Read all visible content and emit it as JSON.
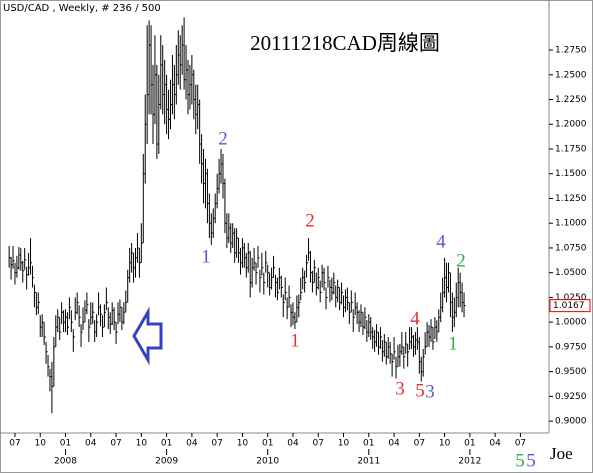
{
  "chart_data": {
    "type": "ohlc",
    "header": "USD/CAD , Weekly, # 236 / 500",
    "title": "20111218CAD周線圖",
    "author": "Joe",
    "color": "#000000",
    "xlim": [
      -4.7,
      277.7
    ],
    "ylim": [
      0.89,
      1.32
    ],
    "xticks": [
      {
        "value": 3,
        "label": "07"
      },
      {
        "value": 16,
        "label": "10"
      },
      {
        "value": 29,
        "label": "01"
      },
      {
        "value": 42,
        "label": "04"
      },
      {
        "value": 55,
        "label": "07"
      },
      {
        "value": 68,
        "label": "10"
      },
      {
        "value": 81,
        "label": "01"
      },
      {
        "value": 94,
        "label": "04"
      },
      {
        "value": 107,
        "label": "07"
      },
      {
        "value": 120,
        "label": "10"
      },
      {
        "value": 133,
        "label": "01"
      },
      {
        "value": 146,
        "label": "04"
      },
      {
        "value": 159,
        "label": "07"
      },
      {
        "value": 172,
        "label": "10"
      },
      {
        "value": 185,
        "label": "01"
      },
      {
        "value": 198,
        "label": "04"
      },
      {
        "value": 211,
        "label": "07"
      },
      {
        "value": 224,
        "label": "10"
      },
      {
        "value": 237,
        "label": "01"
      },
      {
        "value": 250,
        "label": "04"
      },
      {
        "value": 263,
        "label": "07"
      }
    ],
    "year_ticks": [
      {
        "value": 29,
        "label": "2008"
      },
      {
        "value": 81,
        "label": "2009"
      },
      {
        "value": 133,
        "label": "2010"
      },
      {
        "value": 185,
        "label": "2011"
      },
      {
        "value": 237,
        "label": "2012"
      }
    ],
    "yticks": [
      {
        "value": 0.9,
        "label": "0.9000"
      },
      {
        "value": 0.925,
        "label": "0.9250"
      },
      {
        "value": 0.95,
        "label": "0.9500"
      },
      {
        "value": 0.975,
        "label": "0.9750"
      },
      {
        "value": 1.0,
        "label": "1.0000"
      },
      {
        "value": 1.025,
        "label": "1.0250"
      },
      {
        "value": 1.05,
        "label": "1.0500"
      },
      {
        "value": 1.075,
        "label": "1.0750"
      },
      {
        "value": 1.1,
        "label": "1.1000"
      },
      {
        "value": 1.125,
        "label": "1.1250"
      },
      {
        "value": 1.15,
        "label": "1.1500"
      },
      {
        "value": 1.175,
        "label": "1.1750"
      },
      {
        "value": 1.2,
        "label": "1.2000"
      },
      {
        "value": 1.225,
        "label": "1.2250"
      },
      {
        "value": 1.25,
        "label": "1.2500"
      },
      {
        "value": 1.275,
        "label": "1.2750"
      }
    ],
    "last_price": 1.0167,
    "high": [
      1.077,
      1.066,
      1.077,
      1.06,
      1.067,
      1.076,
      1.075,
      1.062,
      1.075,
      1.056,
      1.07,
      1.085,
      1.057,
      1.038,
      1.03,
      1.03,
      1.007,
      1.008,
      1.0,
      0.98,
      0.967,
      0.953,
      0.96,
      0.985,
      1.007,
      1.013,
      1.005,
      1.02,
      1.012,
      1.013,
      1.01,
      1.025,
      1.012,
      0.993,
      1.025,
      1.03,
      1.017,
      0.998,
      1.015,
      1.022,
      1.03,
      1.003,
      1.02,
      1.02,
      1.002,
      1.008,
      1.03,
      1.018,
      1.007,
      1.018,
      1.035,
      1.015,
      1.01,
      1.02,
      1.015,
      1.0,
      1.02,
      1.023,
      1.015,
      1.02,
      1.032,
      1.053,
      1.075,
      1.08,
      1.07,
      1.075,
      1.09,
      1.075,
      1.1,
      1.17,
      1.23,
      1.3,
      1.305,
      1.3,
      1.26,
      1.29,
      1.26,
      1.25,
      1.29,
      1.28,
      1.265,
      1.25,
      1.235,
      1.245,
      1.27,
      1.26,
      1.28,
      1.295,
      1.29,
      1.3,
      1.308,
      1.28,
      1.265,
      1.26,
      1.27,
      1.255,
      1.24,
      1.24,
      1.225,
      1.19,
      1.175,
      1.165,
      1.155,
      1.13,
      1.11,
      1.115,
      1.13,
      1.15,
      1.165,
      1.175,
      1.17,
      1.145,
      1.11,
      1.11,
      1.1,
      1.1,
      1.095,
      1.095,
      1.085,
      1.075,
      1.085,
      1.08,
      1.07,
      1.08,
      1.072,
      1.065,
      1.075,
      1.06,
      1.077,
      1.053,
      1.07,
      1.05,
      1.072,
      1.058,
      1.05,
      1.055,
      1.067,
      1.048,
      1.045,
      1.055,
      1.047,
      1.028,
      1.045,
      1.025,
      1.037,
      1.018,
      1.02,
      1.01,
      1.027,
      1.028,
      1.045,
      1.055,
      1.052,
      1.068,
      1.085,
      1.072,
      1.052,
      1.063,
      1.05,
      1.055,
      1.042,
      1.058,
      1.055,
      1.035,
      1.057,
      1.043,
      1.045,
      1.05,
      1.037,
      1.043,
      1.035,
      1.04,
      1.027,
      1.033,
      1.035,
      1.02,
      1.032,
      1.013,
      1.03,
      1.02,
      1.012,
      1.018,
      1.01,
      1.015,
      1.002,
      1.008,
      1.005,
      0.995,
      0.992,
      0.998,
      0.99,
      0.995,
      0.982,
      0.988,
      0.98,
      0.985,
      0.98,
      0.968,
      0.985,
      0.965,
      0.977,
      0.978,
      0.99,
      0.975,
      0.99,
      0.978,
      0.995,
      0.995,
      0.987,
      0.99,
      0.995,
      0.985,
      0.965,
      0.973,
      0.99,
      1.0,
      0.997,
      1.003,
      0.995,
      1.005,
      1.002,
      1.013,
      1.03,
      1.045,
      1.065,
      1.06,
      1.06,
      1.05,
      1.03,
      1.025,
      1.04,
      1.055,
      1.05,
      1.04,
      1.03
    ],
    "low": [
      1.055,
      1.043,
      1.054,
      1.038,
      1.045,
      1.053,
      1.052,
      1.04,
      1.053,
      1.033,
      1.047,
      1.048,
      1.035,
      1.015,
      1.007,
      1.008,
      0.985,
      0.985,
      0.977,
      0.958,
      0.945,
      0.93,
      0.908,
      0.935,
      0.975,
      0.99,
      0.982,
      0.998,
      0.99,
      0.99,
      0.987,
      1.003,
      0.99,
      0.97,
      1.002,
      1.008,
      0.995,
      0.975,
      0.992,
      1.0,
      1.008,
      0.98,
      0.997,
      0.998,
      0.98,
      0.985,
      1.007,
      0.996,
      0.985,
      0.995,
      1.012,
      0.993,
      0.988,
      0.997,
      0.992,
      0.978,
      0.998,
      1.0,
      0.992,
      0.998,
      1.01,
      1.02,
      1.04,
      1.05,
      1.04,
      1.045,
      1.06,
      1.045,
      1.06,
      1.08,
      1.14,
      1.18,
      1.21,
      1.21,
      1.18,
      1.2,
      1.165,
      1.17,
      1.215,
      1.21,
      1.2,
      1.19,
      1.185,
      1.195,
      1.21,
      1.205,
      1.22,
      1.24,
      1.235,
      1.25,
      1.235,
      1.225,
      1.21,
      1.215,
      1.22,
      1.205,
      1.19,
      1.195,
      1.16,
      1.14,
      1.12,
      1.115,
      1.1,
      1.085,
      1.078,
      1.085,
      1.1,
      1.115,
      1.13,
      1.14,
      1.125,
      1.09,
      1.075,
      1.08,
      1.07,
      1.075,
      1.06,
      1.065,
      1.06,
      1.048,
      1.055,
      1.055,
      1.045,
      1.05,
      1.025,
      1.035,
      1.052,
      1.038,
      1.055,
      1.03,
      1.047,
      1.028,
      1.05,
      1.035,
      1.027,
      1.033,
      1.045,
      1.025,
      1.022,
      1.033,
      1.025,
      1.005,
      1.022,
      1.003,
      1.015,
      0.995,
      0.997,
      0.993,
      1.0,
      1.005,
      1.022,
      1.033,
      1.03,
      1.045,
      1.062,
      1.04,
      1.03,
      1.04,
      1.027,
      1.033,
      1.02,
      1.035,
      1.032,
      1.013,
      1.035,
      1.02,
      1.022,
      1.028,
      1.015,
      1.02,
      1.012,
      1.018,
      1.005,
      1.01,
      1.012,
      0.998,
      1.01,
      0.99,
      1.007,
      0.998,
      0.99,
      0.995,
      0.987,
      0.993,
      0.98,
      0.985,
      0.982,
      0.973,
      0.97,
      0.975,
      0.967,
      0.973,
      0.96,
      0.965,
      0.957,
      0.963,
      0.958,
      0.945,
      0.962,
      0.943,
      0.955,
      0.955,
      0.967,
      0.953,
      0.968,
      0.955,
      0.972,
      0.973,
      0.965,
      0.967,
      0.972,
      0.948,
      0.94,
      0.945,
      0.967,
      0.975,
      0.975,
      0.98,
      0.972,
      0.983,
      0.98,
      0.99,
      1.0,
      1.01,
      1.025,
      1.02,
      1.03,
      1.005,
      0.99,
      0.995,
      1.005,
      1.015,
      1.015,
      1.01,
      1.005
    ],
    "close": [
      1.065,
      1.058,
      1.062,
      1.05,
      1.055,
      1.068,
      1.06,
      1.052,
      1.063,
      1.048,
      1.055,
      1.06,
      1.045,
      1.03,
      1.015,
      1.02,
      0.995,
      1.0,
      0.985,
      0.97,
      0.955,
      0.945,
      0.935,
      0.975,
      0.995,
      1.005,
      0.99,
      1.01,
      1.0,
      1.005,
      0.995,
      1.015,
      1.0,
      0.985,
      1.01,
      1.02,
      1.005,
      0.99,
      1.0,
      1.012,
      1.018,
      0.995,
      1.005,
      1.01,
      0.99,
      1.0,
      1.015,
      1.008,
      0.995,
      1.01,
      1.02,
      1.005,
      0.998,
      1.012,
      1.0,
      0.99,
      1.008,
      1.015,
      1.0,
      1.01,
      1.02,
      1.045,
      1.06,
      1.07,
      1.055,
      1.065,
      1.075,
      1.06,
      1.08,
      1.15,
      1.2,
      1.23,
      1.28,
      1.24,
      1.21,
      1.25,
      1.18,
      1.22,
      1.26,
      1.23,
      1.24,
      1.215,
      1.205,
      1.22,
      1.24,
      1.23,
      1.25,
      1.27,
      1.26,
      1.28,
      1.245,
      1.255,
      1.23,
      1.24,
      1.25,
      1.225,
      1.21,
      1.22,
      1.18,
      1.16,
      1.14,
      1.15,
      1.12,
      1.1,
      1.09,
      1.105,
      1.12,
      1.135,
      1.15,
      1.16,
      1.14,
      1.1,
      1.085,
      1.095,
      1.08,
      1.09,
      1.07,
      1.085,
      1.07,
      1.06,
      1.075,
      1.065,
      1.055,
      1.07,
      1.04,
      1.055,
      1.06,
      1.05,
      1.065,
      1.045,
      1.055,
      1.04,
      1.06,
      1.05,
      1.035,
      1.045,
      1.055,
      1.04,
      1.03,
      1.045,
      1.035,
      1.02,
      1.03,
      1.015,
      1.025,
      1.01,
      1.005,
      1.0,
      1.015,
      1.02,
      1.03,
      1.045,
      1.04,
      1.06,
      1.07,
      1.05,
      1.04,
      1.055,
      1.035,
      1.045,
      1.03,
      1.05,
      1.04,
      1.025,
      1.045,
      1.035,
      1.03,
      1.04,
      1.025,
      1.035,
      1.02,
      1.03,
      1.015,
      1.025,
      1.02,
      1.01,
      1.02,
      1.005,
      1.015,
      1.01,
      1.0,
      1.01,
      0.995,
      1.005,
      0.99,
      1.0,
      0.99,
      0.985,
      0.98,
      0.99,
      0.975,
      0.985,
      0.97,
      0.98,
      0.965,
      0.975,
      0.968,
      0.96,
      0.97,
      0.955,
      0.965,
      0.97,
      0.975,
      0.965,
      0.978,
      0.97,
      0.98,
      0.985,
      0.975,
      0.982,
      0.98,
      0.96,
      0.95,
      0.965,
      0.975,
      0.99,
      0.985,
      0.995,
      0.98,
      0.995,
      0.99,
      1.005,
      1.015,
      1.03,
      1.045,
      1.035,
      1.05,
      1.02,
      1.005,
      1.01,
      1.025,
      1.04,
      1.03,
      1.02,
      1.0167
    ],
    "annotations": [
      {
        "text": "1",
        "color": "#5a5ad0"
      },
      {
        "text": "2",
        "color": "#5a5ad0"
      },
      {
        "text": "1",
        "color": "#e03030"
      },
      {
        "text": "2",
        "color": "#e03030"
      },
      {
        "text": "3",
        "color": "#e03030"
      },
      {
        "text": "4",
        "color": "#e03030"
      },
      {
        "text": "5",
        "color": "#e03030"
      },
      {
        "text": "3",
        "color": "#5a5ad0"
      },
      {
        "text": "4",
        "color": "#5a5ad0"
      },
      {
        "text": "1",
        "color": "#3aaa3a"
      },
      {
        "text": "2",
        "color": "#3aaa3a"
      },
      {
        "text": "5",
        "color": "#3aaa3a"
      },
      {
        "text": "5",
        "color": "#5a5ad0"
      }
    ]
  }
}
